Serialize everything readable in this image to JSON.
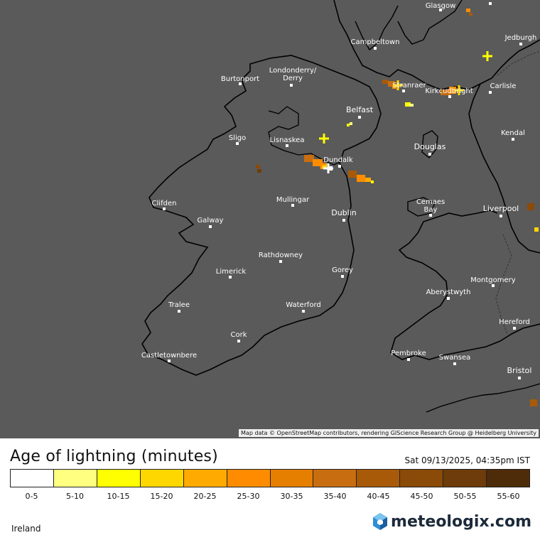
{
  "map": {
    "region": "Ireland",
    "attribution": "Map data © OpenStreetMap contributors, rendering GIScience Research Group @ Heidelberg University",
    "cities": [
      {
        "name": "Glasgow"
      },
      {
        "name": "Jedburgh"
      },
      {
        "name": "Campbeltown"
      },
      {
        "name": "Burtonport"
      },
      {
        "name": "Londonderry/"
      },
      {
        "name": "Derry"
      },
      {
        "name": "Belfast"
      },
      {
        "name": "Stranraer"
      },
      {
        "name": "Kirkcudbright"
      },
      {
        "name": "Carlisle"
      },
      {
        "name": "Sligo"
      },
      {
        "name": "Lisnaskea"
      },
      {
        "name": "Dundalk"
      },
      {
        "name": "Douglas"
      },
      {
        "name": "Kendal"
      },
      {
        "name": "Clifden"
      },
      {
        "name": "Mullingar"
      },
      {
        "name": "Galway"
      },
      {
        "name": "Dublin"
      },
      {
        "name": "Cemaes"
      },
      {
        "name": "Bay"
      },
      {
        "name": "Liverpool"
      },
      {
        "name": "Rathdowney"
      },
      {
        "name": "Limerick"
      },
      {
        "name": "Gorey"
      },
      {
        "name": "Aberystwyth"
      },
      {
        "name": "Montgomery"
      },
      {
        "name": "Tralee"
      },
      {
        "name": "Waterford"
      },
      {
        "name": "Hereford"
      },
      {
        "name": "Cork"
      },
      {
        "name": "Castletownbere"
      },
      {
        "name": "Pembroke"
      },
      {
        "name": "Swansea"
      },
      {
        "name": "Bristol"
      }
    ]
  },
  "legend": {
    "title": "Age of lightning (minutes)",
    "timestamp": "Sat 09/13/2025, 04:35pm IST",
    "bins": [
      {
        "label": "0-5",
        "color": "#ffffff"
      },
      {
        "label": "5-10",
        "color": "#ffff80"
      },
      {
        "label": "10-15",
        "color": "#ffff00"
      },
      {
        "label": "15-20",
        "color": "#ffd700"
      },
      {
        "label": "20-25",
        "color": "#ffaa00"
      },
      {
        "label": "25-30",
        "color": "#ff8c00"
      },
      {
        "label": "30-35",
        "color": "#e67e00"
      },
      {
        "label": "35-40",
        "color": "#c86e10"
      },
      {
        "label": "40-45",
        "color": "#a85a08"
      },
      {
        "label": "45-50",
        "color": "#8a4a08"
      },
      {
        "label": "50-55",
        "color": "#6e3c0a"
      },
      {
        "label": "55-60",
        "color": "#4e2c0a"
      }
    ]
  },
  "branding": {
    "logo": "meteologix.com"
  }
}
